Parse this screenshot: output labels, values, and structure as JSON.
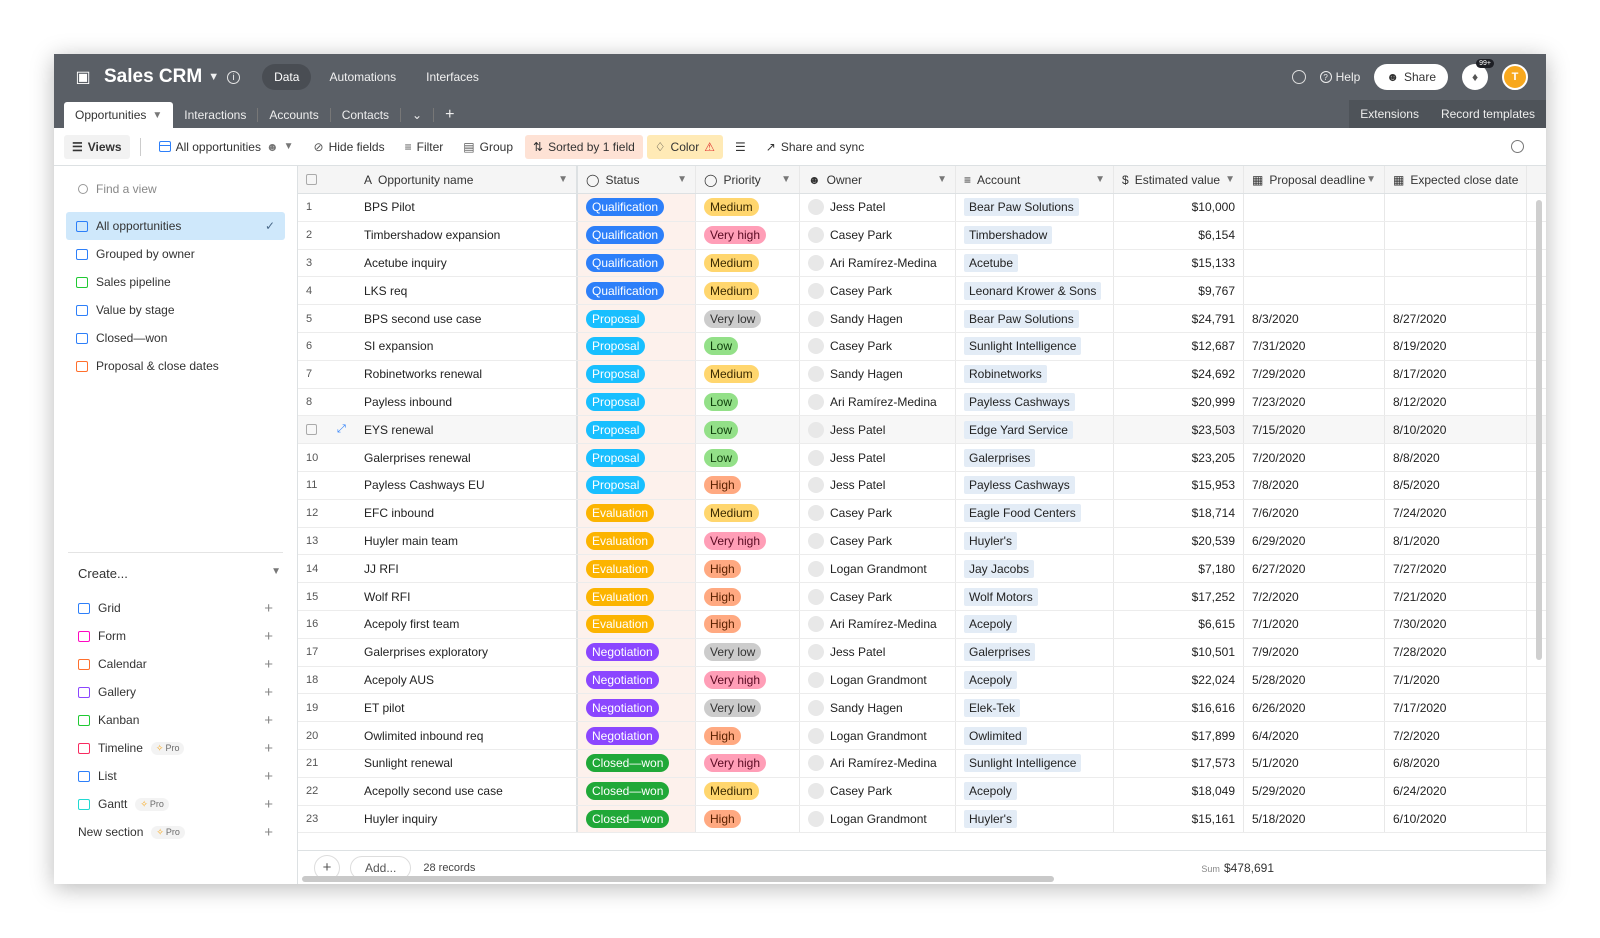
{
  "app": {
    "base_title": "Sales CRM",
    "nav": [
      "Data",
      "Automations",
      "Interfaces"
    ],
    "help": "Help",
    "share": "Share",
    "notifications": "99+",
    "avatar_initial": "T"
  },
  "tabs": {
    "items": [
      "Opportunities",
      "Interactions",
      "Accounts",
      "Contacts"
    ],
    "extensions": "Extensions",
    "record_templates": "Record templates"
  },
  "toolbar": {
    "views": "Views",
    "current_view": "All opportunities",
    "hide_fields": "Hide fields",
    "filter": "Filter",
    "group": "Group",
    "sorted": "Sorted by 1 field",
    "color": "Color",
    "share_sync": "Share and sync"
  },
  "sidebar": {
    "find_placeholder": "Find a view",
    "views": [
      {
        "label": "All opportunities",
        "icon": "grid-icon",
        "color": "#2d7ff9"
      },
      {
        "label": "Grouped by owner",
        "icon": "grid-icon",
        "color": "#2d7ff9"
      },
      {
        "label": "Sales pipeline",
        "icon": "kanban-icon",
        "color": "#20c933"
      },
      {
        "label": "Value by stage",
        "icon": "grid-icon",
        "color": "#2d7ff9"
      },
      {
        "label": "Closed—won",
        "icon": "grid-icon",
        "color": "#2d7ff9"
      },
      {
        "label": "Proposal & close dates",
        "icon": "calendar-icon",
        "color": "#ff6f2c"
      }
    ],
    "create_label": "Create...",
    "create_items": [
      {
        "label": "Grid",
        "color": "#2d7ff9",
        "pro": ""
      },
      {
        "label": "Form",
        "color": "#ff08c2",
        "pro": ""
      },
      {
        "label": "Calendar",
        "color": "#ff6f2c",
        "pro": ""
      },
      {
        "label": "Gallery",
        "color": "#8b46ff",
        "pro": ""
      },
      {
        "label": "Kanban",
        "color": "#20c933",
        "pro": ""
      },
      {
        "label": "Timeline",
        "color": "#f82b60",
        "pro": "Pro"
      },
      {
        "label": "List",
        "color": "#2d7ff9",
        "pro": ""
      },
      {
        "label": "Gantt",
        "color": "#20d9d2",
        "pro": "Pro"
      }
    ],
    "new_section": "New section",
    "new_section_pro": "Pro"
  },
  "columns": [
    "Opportunity name",
    "Status",
    "Priority",
    "Owner",
    "Account",
    "Estimated value",
    "Proposal deadline",
    "Expected close date"
  ],
  "status_colors": {
    "Qualification": {
      "bg": "#2d7ff9",
      "fg": "#ffffff"
    },
    "Proposal": {
      "bg": "#18bfff",
      "fg": "#ffffff"
    },
    "Evaluation": {
      "bg": "#fcb400",
      "fg": "#ffffff"
    },
    "Negotiation": {
      "bg": "#8b46ff",
      "fg": "#ffffff"
    },
    "Closed—won": {
      "bg": "#20a838",
      "fg": "#ffffff"
    }
  },
  "priority_colors": {
    "Medium": {
      "bg": "#ffd66e",
      "fg": "#3b2a00"
    },
    "Very high": {
      "bg": "#ff9eb7",
      "fg": "#5a0a22"
    },
    "Very low": {
      "bg": "#cccccc",
      "fg": "#333333"
    },
    "Low": {
      "bg": "#93e088",
      "fg": "#0d3d0a"
    },
    "High": {
      "bg": "#ffa981",
      "fg": "#5a2100"
    }
  },
  "rows": [
    {
      "n": "1",
      "name": "BPS Pilot",
      "status": "Qualification",
      "priority": "Medium",
      "owner": "Jess Patel",
      "account": "Bear Paw Solutions",
      "value": "$10,000",
      "proposal": "",
      "close": ""
    },
    {
      "n": "2",
      "name": "Timbershadow expansion",
      "status": "Qualification",
      "priority": "Very high",
      "owner": "Casey Park",
      "account": "Timbershadow",
      "value": "$6,154",
      "proposal": "",
      "close": ""
    },
    {
      "n": "3",
      "name": "Acetube inquiry",
      "status": "Qualification",
      "priority": "Medium",
      "owner": "Ari Ramírez-Medina",
      "account": "Acetube",
      "value": "$15,133",
      "proposal": "",
      "close": ""
    },
    {
      "n": "4",
      "name": "LKS req",
      "status": "Qualification",
      "priority": "Medium",
      "owner": "Casey Park",
      "account": "Leonard Krower & Sons",
      "value": "$9,767",
      "proposal": "",
      "close": ""
    },
    {
      "n": "5",
      "name": "BPS second use case",
      "status": "Proposal",
      "priority": "Very low",
      "owner": "Sandy Hagen",
      "account": "Bear Paw Solutions",
      "value": "$24,791",
      "proposal": "8/3/2020",
      "close": "8/27/2020"
    },
    {
      "n": "6",
      "name": "SI expansion",
      "status": "Proposal",
      "priority": "Low",
      "owner": "Casey Park",
      "account": "Sunlight Intelligence",
      "value": "$12,687",
      "proposal": "7/31/2020",
      "close": "8/19/2020"
    },
    {
      "n": "7",
      "name": "Robinetworks renewal",
      "status": "Proposal",
      "priority": "Medium",
      "owner": "Sandy Hagen",
      "account": "Robinetworks",
      "value": "$24,692",
      "proposal": "7/29/2020",
      "close": "8/17/2020"
    },
    {
      "n": "8",
      "name": "Payless inbound",
      "status": "Proposal",
      "priority": "Low",
      "owner": "Ari Ramírez-Medina",
      "account": "Payless Cashways",
      "value": "$20,999",
      "proposal": "7/23/2020",
      "close": "8/12/2020"
    },
    {
      "n": "",
      "name": "EYS renewal",
      "status": "Proposal",
      "priority": "Low",
      "owner": "Jess Patel",
      "account": "Edge Yard Service",
      "value": "$23,503",
      "proposal": "7/15/2020",
      "close": "8/10/2020"
    },
    {
      "n": "10",
      "name": "Galerprises renewal",
      "status": "Proposal",
      "priority": "Low",
      "owner": "Jess Patel",
      "account": "Galerprises",
      "value": "$23,205",
      "proposal": "7/20/2020",
      "close": "8/8/2020"
    },
    {
      "n": "11",
      "name": "Payless Cashways EU",
      "status": "Proposal",
      "priority": "High",
      "owner": "Jess Patel",
      "account": "Payless Cashways",
      "value": "$15,953",
      "proposal": "7/8/2020",
      "close": "8/5/2020"
    },
    {
      "n": "12",
      "name": "EFC inbound",
      "status": "Evaluation",
      "priority": "Medium",
      "owner": "Casey Park",
      "account": "Eagle Food Centers",
      "value": "$18,714",
      "proposal": "7/6/2020",
      "close": "7/24/2020"
    },
    {
      "n": "13",
      "name": "Huyler main team",
      "status": "Evaluation",
      "priority": "Very high",
      "owner": "Casey Park",
      "account": "Huyler's",
      "value": "$20,539",
      "proposal": "6/29/2020",
      "close": "8/1/2020"
    },
    {
      "n": "14",
      "name": "JJ RFI",
      "status": "Evaluation",
      "priority": "High",
      "owner": "Logan Grandmont",
      "account": "Jay Jacobs",
      "value": "$7,180",
      "proposal": "6/27/2020",
      "close": "7/27/2020"
    },
    {
      "n": "15",
      "name": "Wolf RFI",
      "status": "Evaluation",
      "priority": "High",
      "owner": "Casey Park",
      "account": "Wolf Motors",
      "value": "$17,252",
      "proposal": "7/2/2020",
      "close": "7/21/2020"
    },
    {
      "n": "16",
      "name": "Acepoly first team",
      "status": "Evaluation",
      "priority": "High",
      "owner": "Ari Ramírez-Medina",
      "account": "Acepoly",
      "value": "$6,615",
      "proposal": "7/1/2020",
      "close": "7/30/2020"
    },
    {
      "n": "17",
      "name": "Galerprises exploratory",
      "status": "Negotiation",
      "priority": "Very low",
      "owner": "Jess Patel",
      "account": "Galerprises",
      "value": "$10,501",
      "proposal": "7/9/2020",
      "close": "7/28/2020"
    },
    {
      "n": "18",
      "name": "Acepoly AUS",
      "status": "Negotiation",
      "priority": "Very high",
      "owner": "Logan Grandmont",
      "account": "Acepoly",
      "value": "$22,024",
      "proposal": "5/28/2020",
      "close": "7/1/2020"
    },
    {
      "n": "19",
      "name": "ET pilot",
      "status": "Negotiation",
      "priority": "Very low",
      "owner": "Sandy Hagen",
      "account": "Elek-Tek",
      "value": "$16,616",
      "proposal": "6/26/2020",
      "close": "7/17/2020"
    },
    {
      "n": "20",
      "name": "Owlimited inbound req",
      "status": "Negotiation",
      "priority": "High",
      "owner": "Logan Grandmont",
      "account": "Owlimited",
      "value": "$17,899",
      "proposal": "6/4/2020",
      "close": "7/2/2020"
    },
    {
      "n": "21",
      "name": "Sunlight renewal",
      "status": "Closed—won",
      "priority": "Very high",
      "owner": "Ari Ramírez-Medina",
      "account": "Sunlight Intelligence",
      "value": "$17,573",
      "proposal": "5/1/2020",
      "close": "6/8/2020"
    },
    {
      "n": "22",
      "name": "Acepolly second use case",
      "status": "Closed—won",
      "priority": "Medium",
      "owner": "Casey Park",
      "account": "Acepoly",
      "value": "$18,049",
      "proposal": "5/29/2020",
      "close": "6/24/2020"
    },
    {
      "n": "23",
      "name": "Huyler inquiry",
      "status": "Closed—won",
      "priority": "High",
      "owner": "Logan Grandmont",
      "account": "Huyler's",
      "value": "$15,161",
      "proposal": "5/18/2020",
      "close": "6/10/2020"
    }
  ],
  "footer": {
    "add": "Add...",
    "records": "28 records",
    "sum_label": "Sum",
    "sum_value": "$478,691"
  }
}
